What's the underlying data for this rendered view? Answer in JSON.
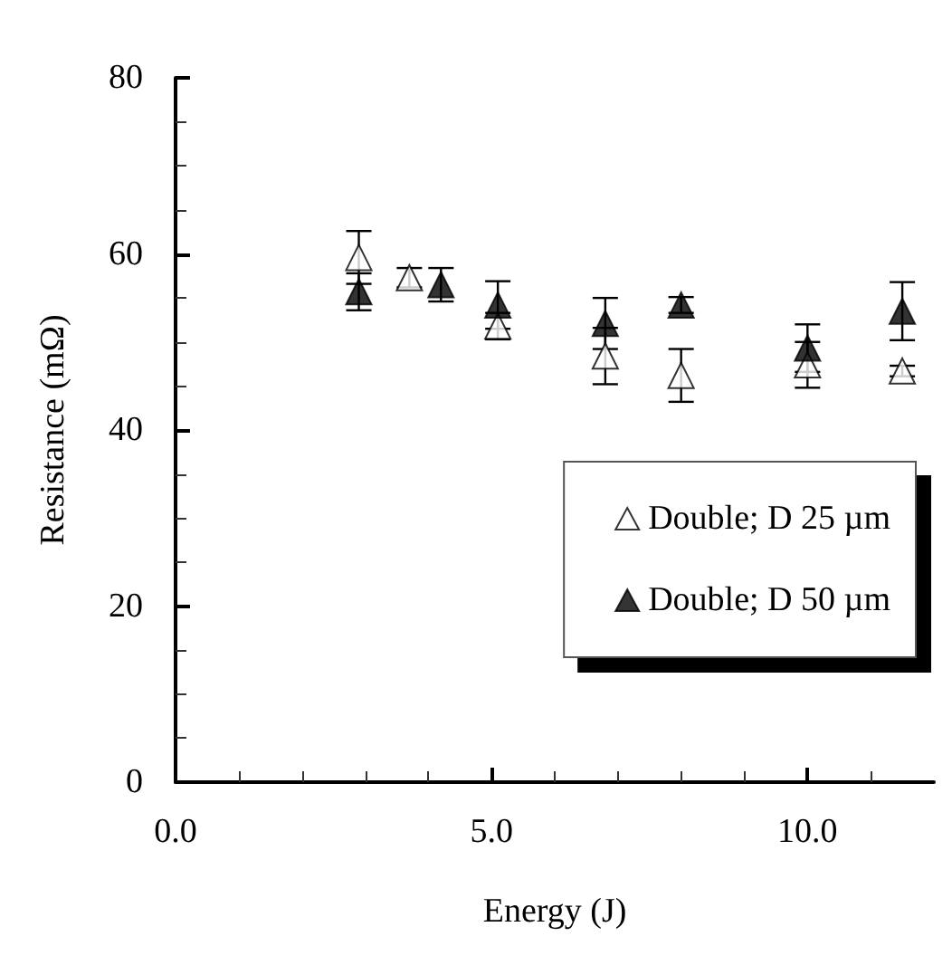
{
  "chart_data": {
    "type": "scatter",
    "xlabel": "Energy (J)",
    "ylabel": "Resistance (mΩ)",
    "series": [
      {
        "name": "Double; D 25 µm",
        "color": "#ffffff",
        "x": [
          2.9,
          3.7,
          5.1,
          6.8,
          8.0,
          10.0,
          11.5
        ],
        "values": [
          59.6,
          57.3,
          51.8,
          48.4,
          46.2,
          47.4,
          46.7
        ],
        "errors": [
          3.0,
          1.1,
          1.5,
          3.2,
          3.0,
          2.6,
          0.6
        ]
      },
      {
        "name": "Double; D 50 µm",
        "color": "#000000",
        "x": [
          2.9,
          4.2,
          5.1,
          6.8,
          8.0,
          10.0,
          11.5
        ],
        "values": [
          55.7,
          56.5,
          54.2,
          52.1,
          54.2,
          49.3,
          53.5
        ],
        "errors": [
          2.1,
          1.9,
          2.7,
          2.9,
          0.9,
          2.7,
          3.3
        ]
      }
    ],
    "xlim": [
      0,
      12
    ],
    "xticks": [
      {
        "value": 0,
        "label": "0.0"
      },
      {
        "value": 5,
        "label": "5.0"
      },
      {
        "value": 10,
        "label": "10.0"
      }
    ],
    "ylim": [
      0,
      80
    ],
    "yticks": [
      0,
      20,
      40,
      60,
      80
    ],
    "grid": false,
    "legend": "bottom right",
    "marker": "triangle"
  }
}
